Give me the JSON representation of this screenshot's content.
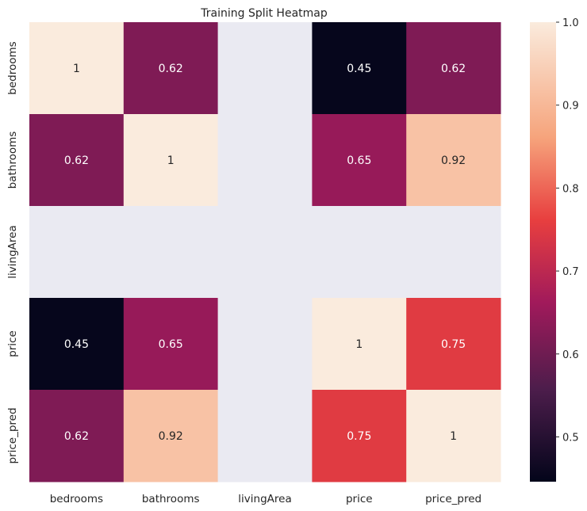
{
  "chart_data": {
    "type": "heatmap",
    "title": "Training Split Heatmap",
    "xlabel": "",
    "ylabel": "",
    "x_categories": [
      "bedrooms",
      "bathrooms",
      "livingArea",
      "price",
      "price_pred"
    ],
    "y_categories": [
      "bedrooms",
      "bathrooms",
      "livingArea",
      "price",
      "price_pred"
    ],
    "values": [
      [
        1,
        0.62,
        null,
        0.45,
        0.62
      ],
      [
        0.62,
        1,
        null,
        0.65,
        0.92
      ],
      [
        null,
        null,
        null,
        null,
        null
      ],
      [
        0.45,
        0.65,
        null,
        1,
        0.75
      ],
      [
        0.62,
        0.92,
        null,
        0.75,
        1
      ]
    ],
    "cell_labels": [
      [
        "1",
        "0.62",
        "",
        "0.45",
        "0.62"
      ],
      [
        "0.62",
        "1",
        "",
        "0.65",
        "0.92"
      ],
      [
        "",
        "",
        "",
        "",
        ""
      ],
      [
        "0.45",
        "0.65",
        "",
        "1",
        "0.75"
      ],
      [
        "0.62",
        "0.92",
        "",
        "0.75",
        "1"
      ]
    ],
    "colormap": "rocket",
    "missing_color": "#eaeaf2",
    "colorbar": {
      "range": [
        0.446,
        1.0
      ],
      "ticks": [
        0.5,
        0.6,
        0.7,
        0.8,
        0.9,
        1.0
      ],
      "tick_labels": [
        "0.5",
        "0.6",
        "0.7",
        "0.8",
        "0.9",
        "1.0"
      ]
    },
    "grid": false
  }
}
